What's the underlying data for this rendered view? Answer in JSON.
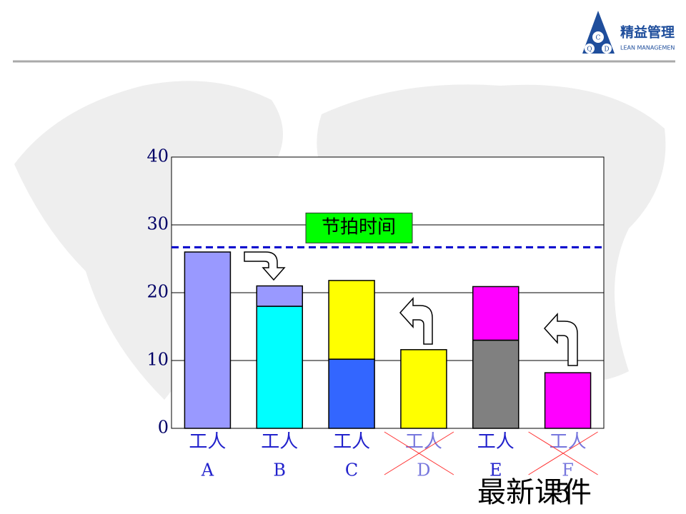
{
  "header": {
    "logo_text": "精益管理",
    "logo_subtext": "LEAN MANAGEMEN",
    "logo_letters": [
      "Q",
      "C",
      "D"
    ]
  },
  "chart_data": {
    "type": "bar",
    "stacked": true,
    "categories": [
      [
        "工人",
        "A"
      ],
      [
        "工人",
        "B"
      ],
      [
        "工人",
        "C"
      ],
      [
        "工人",
        "D"
      ],
      [
        "工人",
        "E"
      ],
      [
        "工人",
        "F"
      ]
    ],
    "removed": [
      false,
      false,
      false,
      true,
      false,
      true
    ],
    "series": [
      {
        "colors": [
          "#9999ff",
          "#00ffff",
          "#3366ff",
          "#ffff00",
          "#808080",
          "#ff00ff"
        ],
        "values": [
          26,
          18,
          10.2,
          11.6,
          13,
          8.2
        ]
      },
      {
        "colors": [
          null,
          "#9999ff",
          "#ffff00",
          null,
          "#ff00ff",
          null
        ],
        "values": [
          null,
          3,
          11.6,
          null,
          7.9,
          null
        ]
      }
    ],
    "reference_line": {
      "label": "节拍时间",
      "value": 26.7,
      "color": "#0000cc"
    },
    "ylim": [
      0,
      40
    ],
    "yticks": [
      0,
      10,
      20,
      30,
      40
    ],
    "grid": true
  },
  "footer": {
    "text": "最新课件",
    "page_number": "5"
  }
}
